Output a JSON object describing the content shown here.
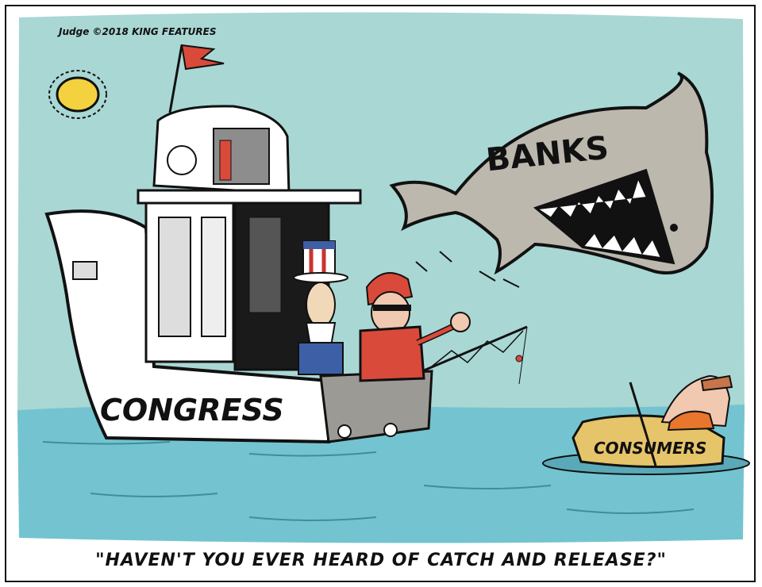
{
  "signature": "Judge ©2018 KING FEATURES",
  "labels": {
    "boat": "CONGRESS",
    "shark": "BANKS",
    "raft": "CONSUMERS"
  },
  "caption": "\"HAVEN'T YOU EVER HEARD OF CATCH AND RELEASE?\"",
  "colors": {
    "sky": "#a9d7d4",
    "water": "#73c4d0",
    "boat_hull": "#ffffff",
    "shark": "#bcb8ad",
    "sun": "#f4d23f",
    "flag": "#d94a3a",
    "raft": "#e6c46a"
  }
}
